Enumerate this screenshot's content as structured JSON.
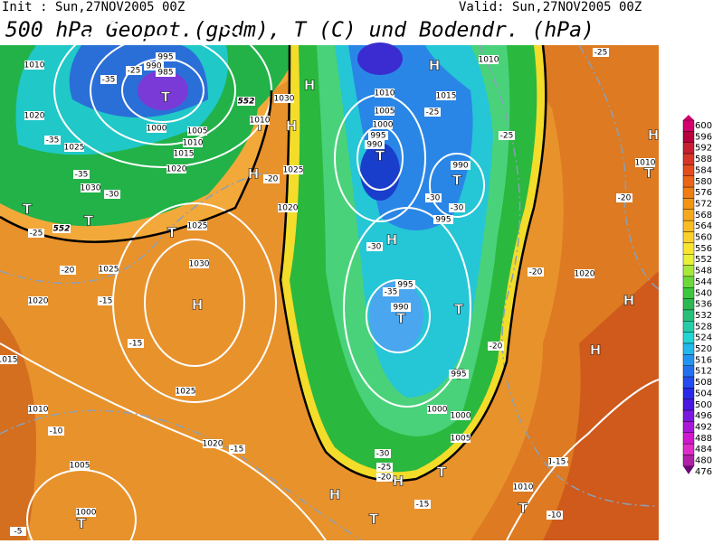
{
  "header": {
    "init": "Init : Sun,27NOV2005 00Z",
    "valid": "Valid: Sun,27NOV2005 00Z",
    "title": "500 hPa Geopot.(gpdm), T (C) und Bodendr. (hPa)"
  },
  "colorbar": {
    "labels": [
      600,
      596,
      592,
      588,
      584,
      580,
      576,
      572,
      568,
      564,
      560,
      556,
      552,
      548,
      544,
      540,
      536,
      532,
      528,
      524,
      520,
      516,
      512,
      508,
      504,
      500,
      496,
      492,
      488,
      484,
      480,
      476
    ]
  },
  "map": {
    "centers": [
      "H",
      "H",
      "H",
      "H",
      "H",
      "H",
      "H",
      "H",
      "H",
      "H",
      "H",
      "T",
      "T",
      "T",
      "T",
      "T",
      "T",
      "T",
      "T",
      "T",
      "T",
      "T",
      "T",
      "T",
      "T",
      "T"
    ],
    "isobar_labels": [
      1010,
      1020,
      1025,
      1020,
      1030,
      1025,
      1020,
      1030,
      1025,
      1010,
      1020,
      1005,
      1000,
      1015,
      1030,
      1025,
      1020,
      1025,
      1010,
      1005,
      1000,
      995,
      990,
      1015,
      1010,
      990,
      995,
      995,
      990,
      995,
      1000,
      1000,
      1005,
      1020,
      1015,
      1010,
      1010,
      1000,
      1005,
      1010,
      1015,
      995,
      990,
      985,
      1010
    ],
    "isotherm_labels": [
      -35,
      -25,
      -35,
      -35,
      -30,
      -25,
      -20,
      -15,
      -15,
      -10,
      -15,
      -5,
      -20,
      -25,
      -25,
      -30,
      -30,
      -30,
      -35,
      -20,
      -20,
      -20,
      -25,
      -30,
      -25,
      -20,
      -15,
      -15,
      -10
    ],
    "height_labels": [
      552,
      552
    ]
  }
}
